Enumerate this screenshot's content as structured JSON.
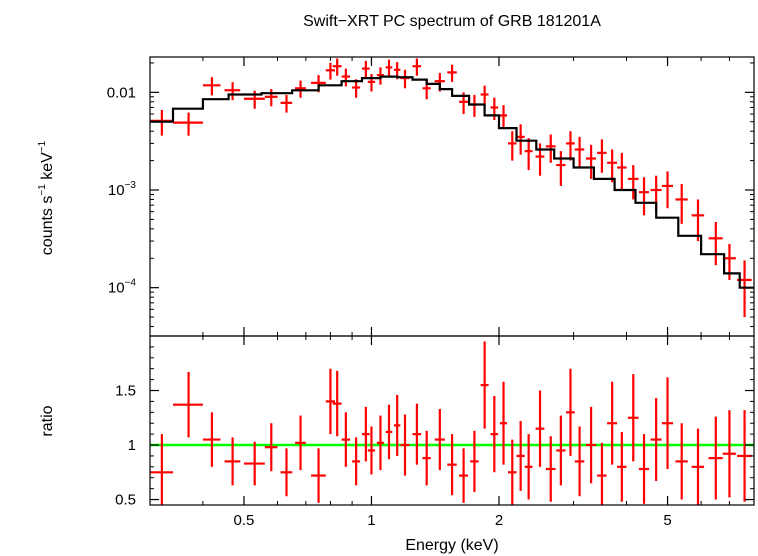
{
  "chart_data": {
    "type": "scatter",
    "title": "Swift−XRT PC spectrum of GRB 181201A",
    "xlabel": "Energy (keV)",
    "xscale": "log",
    "xlim": [
      0.3,
      8.0
    ],
    "x_ticks": [
      {
        "value": 0.5,
        "label": "0.5"
      },
      {
        "value": 1,
        "label": "1"
      },
      {
        "value": 2,
        "label": "2"
      },
      {
        "value": 5,
        "label": "5"
      }
    ],
    "colors": {
      "data": "#ff0000",
      "model": "#000000",
      "unity": "#00ff00"
    },
    "panels": [
      {
        "name": "spectrum",
        "ylabel_parts": {
          "a": "counts s",
          "a_sup": "−1",
          "b": " keV",
          "b_sup": "−1"
        },
        "yscale": "log",
        "ylim": [
          3.2e-05,
          0.023
        ],
        "y_ticks": [
          {
            "value": 0.01,
            "label": "0.01"
          },
          {
            "value": 0.001,
            "base": "10",
            "exp": "−3"
          },
          {
            "value": 0.0001,
            "base": "10",
            "exp": "−4"
          }
        ],
        "series": [
          {
            "kind": "errorbars",
            "x": [
              0.32,
              0.37,
              0.42,
              0.47,
              0.53,
              0.58,
              0.63,
              0.68,
              0.75,
              0.8,
              0.83,
              0.87,
              0.92,
              0.97,
              1.0,
              1.05,
              1.1,
              1.15,
              1.2,
              1.28,
              1.35,
              1.45,
              1.55,
              1.65,
              1.75,
              1.85,
              1.95,
              2.05,
              2.15,
              2.25,
              2.35,
              2.5,
              2.65,
              2.8,
              2.95,
              3.1,
              3.3,
              3.5,
              3.7,
              3.9,
              4.15,
              4.4,
              4.7,
              5.0,
              5.4,
              5.9,
              6.5,
              7.0,
              7.6
            ],
            "xerr": [
              0.02,
              0.03,
              0.02,
              0.02,
              0.03,
              0.02,
              0.02,
              0.02,
              0.03,
              0.02,
              0.02,
              0.02,
              0.02,
              0.02,
              0.02,
              0.02,
              0.02,
              0.02,
              0.03,
              0.03,
              0.03,
              0.04,
              0.04,
              0.04,
              0.04,
              0.04,
              0.04,
              0.04,
              0.05,
              0.05,
              0.05,
              0.06,
              0.07,
              0.07,
              0.07,
              0.08,
              0.09,
              0.09,
              0.1,
              0.1,
              0.12,
              0.12,
              0.14,
              0.15,
              0.18,
              0.2,
              0.25,
              0.25,
              0.3
            ],
            "y": [
              0.0051,
              0.0049,
              0.0118,
              0.0105,
              0.0086,
              0.009,
              0.0078,
              0.011,
              0.0125,
              0.0168,
              0.0185,
              0.0145,
              0.0112,
              0.0175,
              0.0128,
              0.015,
              0.018,
              0.017,
              0.014,
              0.0185,
              0.011,
              0.013,
              0.016,
              0.008,
              0.0075,
              0.0095,
              0.007,
              0.0058,
              0.003,
              0.0035,
              0.0025,
              0.0022,
              0.0028,
              0.0018,
              0.003,
              0.0026,
              0.0021,
              0.0024,
              0.0019,
              0.0017,
              0.0013,
              0.00095,
              0.001,
              0.0011,
              0.0008,
              0.00055,
              0.00032,
              0.0002,
              0.00012
            ],
            "yerr_lo": [
              0.0015,
              0.0013,
              0.0025,
              0.0022,
              0.0018,
              0.0018,
              0.0016,
              0.0022,
              0.0025,
              0.0033,
              0.0037,
              0.003,
              0.0024,
              0.0035,
              0.0026,
              0.003,
              0.0036,
              0.0034,
              0.003,
              0.0037,
              0.0025,
              0.0028,
              0.0032,
              0.002,
              0.0019,
              0.0022,
              0.0018,
              0.0016,
              0.001,
              0.0012,
              0.0009,
              0.0008,
              0.0009,
              0.0007,
              0.001,
              0.0009,
              0.0008,
              0.0009,
              0.0007,
              0.0007,
              0.0005,
              0.0004,
              0.0004,
              0.00045,
              0.00035,
              0.00025,
              0.00015,
              8e-05,
              7e-05
            ],
            "yerr_hi": [
              0.0015,
              0.0013,
              0.0025,
              0.0022,
              0.0018,
              0.0018,
              0.0016,
              0.0022,
              0.0025,
              0.0033,
              0.0037,
              0.003,
              0.0024,
              0.0035,
              0.0026,
              0.003,
              0.0036,
              0.0034,
              0.003,
              0.0037,
              0.0025,
              0.0028,
              0.0032,
              0.002,
              0.0019,
              0.0022,
              0.0018,
              0.0016,
              0.001,
              0.0012,
              0.0009,
              0.0008,
              0.0009,
              0.0007,
              0.001,
              0.0009,
              0.0008,
              0.0009,
              0.0007,
              0.0007,
              0.0005,
              0.0004,
              0.0004,
              0.00045,
              0.00035,
              0.00025,
              0.00015,
              8e-05,
              7e-05
            ]
          },
          {
            "kind": "step",
            "x": [
              0.3,
              0.34,
              0.4,
              0.46,
              0.55,
              0.65,
              0.75,
              0.85,
              0.95,
              1.05,
              1.15,
              1.25,
              1.35,
              1.45,
              1.55,
              1.7,
              1.85,
              2.0,
              2.2,
              2.45,
              2.7,
              3.0,
              3.35,
              3.75,
              4.2,
              4.7,
              5.3,
              6.0,
              6.8,
              7.4,
              8.0
            ],
            "y": [
              0.005,
              0.0068,
              0.0085,
              0.0095,
              0.0098,
              0.0105,
              0.0118,
              0.013,
              0.014,
              0.0145,
              0.0143,
              0.0135,
              0.0122,
              0.0108,
              0.0092,
              0.0075,
              0.0058,
              0.0043,
              0.0032,
              0.0026,
              0.0021,
              0.0017,
              0.0013,
              0.001,
              0.00074,
              0.00052,
              0.00034,
              0.00022,
              0.00014,
              0.0001,
              0.0001
            ]
          }
        ]
      },
      {
        "name": "ratio",
        "ylabel": "ratio",
        "yscale": "linear",
        "ylim": [
          0.45,
          2.0
        ],
        "y_ticks": [
          {
            "value": 0.5,
            "label": "0.5"
          },
          {
            "value": 1,
            "label": "1"
          },
          {
            "value": 1.5,
            "label": "1.5"
          }
        ],
        "reference_line": 1.0,
        "series": [
          {
            "kind": "errorbars",
            "x": [
              0.32,
              0.37,
              0.42,
              0.47,
              0.53,
              0.58,
              0.63,
              0.68,
              0.75,
              0.8,
              0.83,
              0.87,
              0.92,
              0.97,
              1.0,
              1.05,
              1.1,
              1.15,
              1.2,
              1.28,
              1.35,
              1.45,
              1.55,
              1.65,
              1.75,
              1.85,
              1.95,
              2.05,
              2.15,
              2.25,
              2.35,
              2.5,
              2.65,
              2.8,
              2.95,
              3.1,
              3.3,
              3.5,
              3.7,
              3.9,
              4.15,
              4.4,
              4.7,
              5.0,
              5.4,
              5.9,
              6.5,
              7.0,
              7.6
            ],
            "xerr": [
              0.02,
              0.03,
              0.02,
              0.02,
              0.03,
              0.02,
              0.02,
              0.02,
              0.03,
              0.02,
              0.02,
              0.02,
              0.02,
              0.02,
              0.02,
              0.02,
              0.02,
              0.02,
              0.03,
              0.03,
              0.03,
              0.04,
              0.04,
              0.04,
              0.04,
              0.04,
              0.04,
              0.04,
              0.05,
              0.05,
              0.05,
              0.06,
              0.07,
              0.07,
              0.07,
              0.08,
              0.09,
              0.09,
              0.1,
              0.1,
              0.12,
              0.12,
              0.14,
              0.15,
              0.18,
              0.2,
              0.25,
              0.25,
              0.3
            ],
            "y": [
              0.75,
              1.37,
              1.05,
              0.85,
              0.83,
              0.98,
              0.75,
              1.02,
              0.72,
              1.4,
              1.38,
              1.05,
              0.85,
              1.1,
              0.95,
              1.02,
              1.12,
              1.18,
              1.0,
              1.1,
              0.88,
              1.05,
              0.82,
              0.72,
              0.85,
              1.55,
              1.1,
              1.2,
              0.75,
              0.9,
              0.8,
              1.15,
              0.78,
              0.95,
              1.3,
              0.85,
              1.0,
              0.72,
              1.2,
              0.8,
              1.25,
              0.78,
              1.05,
              1.2,
              0.85,
              0.8,
              0.88,
              0.92,
              0.9
            ],
            "yerr_lo": [
              0.35,
              0.3,
              0.25,
              0.22,
              0.2,
              0.22,
              0.22,
              0.25,
              0.25,
              0.3,
              0.3,
              0.25,
              0.22,
              0.25,
              0.22,
              0.25,
              0.25,
              0.28,
              0.28,
              0.28,
              0.25,
              0.28,
              0.28,
              0.25,
              0.28,
              0.4,
              0.35,
              0.38,
              0.3,
              0.32,
              0.3,
              0.35,
              0.3,
              0.32,
              0.4,
              0.32,
              0.35,
              0.3,
              0.38,
              0.32,
              0.4,
              0.32,
              0.38,
              0.42,
              0.35,
              0.35,
              0.38,
              0.4,
              0.42
            ],
            "yerr_hi": [
              0.35,
              0.3,
              0.25,
              0.22,
              0.2,
              0.22,
              0.22,
              0.25,
              0.25,
              0.3,
              0.3,
              0.25,
              0.22,
              0.25,
              0.22,
              0.25,
              0.25,
              0.28,
              0.28,
              0.28,
              0.25,
              0.28,
              0.28,
              0.25,
              0.28,
              0.4,
              0.35,
              0.38,
              0.3,
              0.32,
              0.3,
              0.35,
              0.3,
              0.32,
              0.4,
              0.32,
              0.35,
              0.3,
              0.38,
              0.32,
              0.4,
              0.32,
              0.38,
              0.42,
              0.35,
              0.35,
              0.38,
              0.4,
              0.42
            ]
          }
        ]
      }
    ]
  }
}
